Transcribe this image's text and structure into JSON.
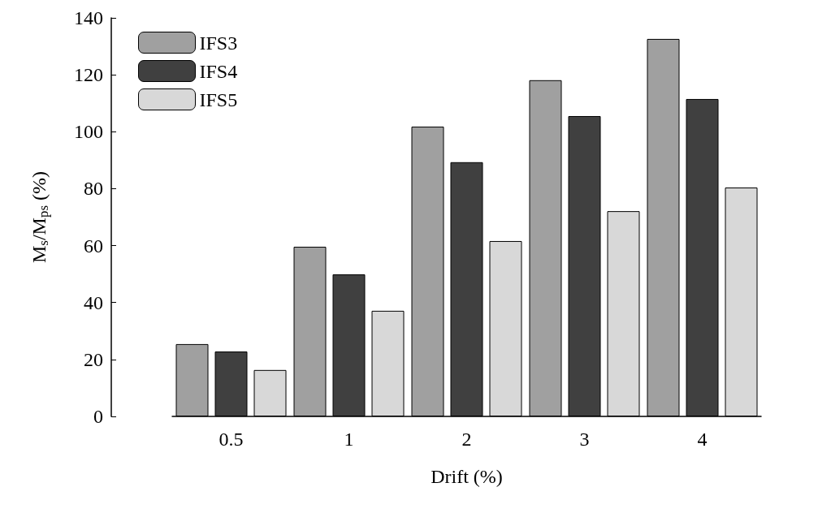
{
  "chart_data": {
    "type": "bar",
    "xlabel": "Drift (%)",
    "ylabel": "M$_{s}$/M$_{ps}$ (%)",
    "categories": [
      "0.5",
      "1",
      "2",
      "3",
      "4"
    ],
    "series": [
      {
        "name": "IFS3",
        "color": "#a0a0a0",
        "values": [
          25.4,
          59.6,
          101.8,
          118.1,
          132.6
        ]
      },
      {
        "name": "IFS4",
        "color": "#404040",
        "values": [
          22.8,
          49.9,
          89.3,
          105.5,
          111.5
        ]
      },
      {
        "name": "IFS5",
        "color": "#d8d8d8",
        "values": [
          16.3,
          37.1,
          61.6,
          72.1,
          80.4
        ]
      }
    ],
    "ylim": [
      0,
      140
    ],
    "yticks": [
      0,
      20,
      40,
      60,
      80,
      100,
      120,
      140
    ],
    "grid": false,
    "legend": "top left"
  }
}
